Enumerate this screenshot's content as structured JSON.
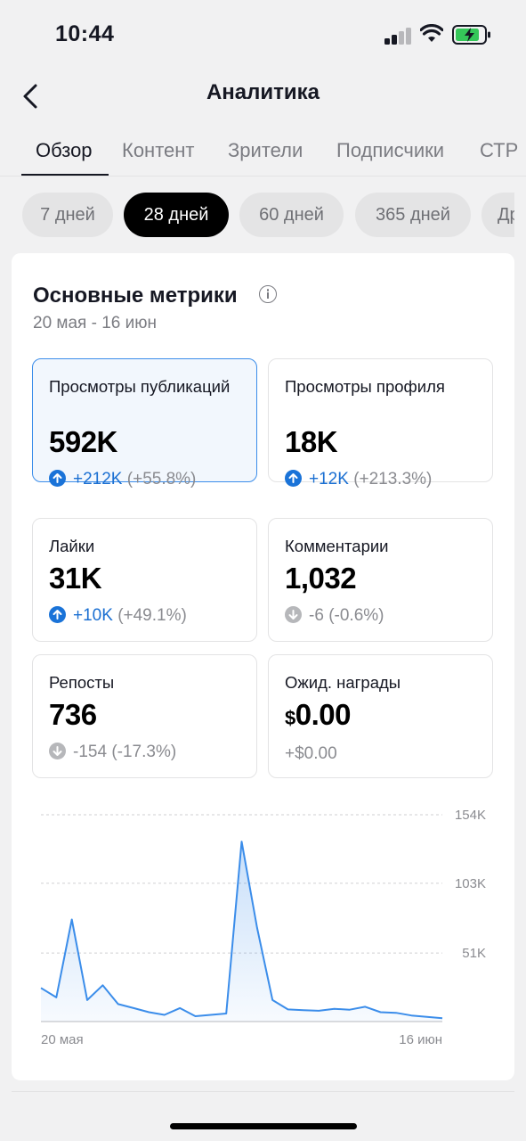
{
  "status_bar": {
    "time": "10:44"
  },
  "header": {
    "title": "Аналитика",
    "back_icon": "chevron-left-icon"
  },
  "tabs": [
    {
      "label": "Обзор",
      "active": true
    },
    {
      "label": "Контент"
    },
    {
      "label": "Зрители"
    },
    {
      "label": "Подписчики"
    },
    {
      "label": "СТР"
    }
  ],
  "periods": [
    {
      "label": "7 дней"
    },
    {
      "label": "28 дней",
      "active": true
    },
    {
      "label": "60 дней"
    },
    {
      "label": "365 дней"
    },
    {
      "label": "Др"
    }
  ],
  "metrics_card": {
    "title": "Основные метрики",
    "info_icon": "info-icon",
    "date_range": "20 мая - 16 июн",
    "metrics": [
      {
        "label": "Просмотры публикаций",
        "value": "592K",
        "change": "+212K",
        "pct": "(+55.8%)",
        "direction": "up",
        "selected": true
      },
      {
        "label": "Просмотры профиля",
        "value": "18K",
        "change": "+12K",
        "pct": "(+213.3%)",
        "direction": "up"
      },
      {
        "label": "Лайки",
        "value": "31K",
        "change": "+10K",
        "pct": "(+49.1%)",
        "direction": "up"
      },
      {
        "label": "Комментарии",
        "value": "1,032",
        "change": "-6",
        "pct": "(-0.6%)",
        "direction": "down"
      },
      {
        "label": "Репосты",
        "value": "736",
        "change": "-154",
        "pct": "(-17.3%)",
        "direction": "down"
      },
      {
        "label": "Ожид. награды",
        "currency": "$",
        "value": "0.00",
        "change": "+$0.00",
        "pct": "",
        "direction": "none"
      }
    ]
  },
  "chart_data": {
    "type": "area",
    "x_tick_labels": [
      "20 мая",
      "16 июн"
    ],
    "y_tick_labels": [
      "154K",
      "103K",
      "51K"
    ],
    "y_ticks": [
      154000,
      103000,
      51000
    ],
    "ylim": [
      0,
      154000
    ],
    "grid": "horizontal-dashed",
    "color": "#3b8dea",
    "values": [
      25000,
      18000,
      76000,
      16000,
      27000,
      13000,
      10000,
      7000,
      5000,
      10000,
      4000,
      5000,
      6000,
      134000,
      70000,
      16000,
      9000,
      8500,
      8000,
      9500,
      8800,
      11000,
      7000,
      6500,
      4500,
      3500,
      2500
    ]
  }
}
